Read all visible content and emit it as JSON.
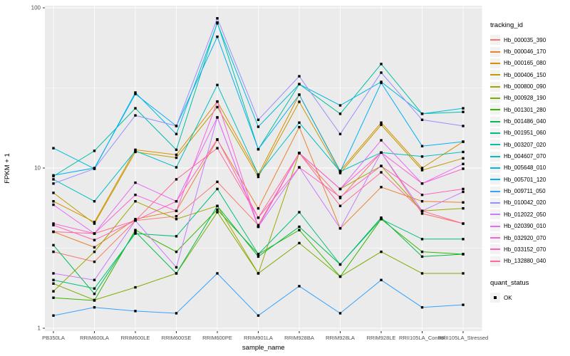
{
  "window": {
    "background": "#FFFFFF"
  },
  "chart_data": {
    "type": "line",
    "title": "",
    "xlabel": "sample_name",
    "ylabel": "FPKM + 1",
    "x_categories": [
      "PB350LA",
      "RRIM600LA",
      "RRIM600LE",
      "RRIM600SE",
      "RRIM600PE",
      "RRIM901LA",
      "RRIM928BA",
      "RRIM928LA",
      "RRIM928LE",
      "RRII105LA_Control",
      "RRII105LA_Stressed"
    ],
    "y_scale": "log10",
    "ylim": [
      1,
      100
    ],
    "y_ticks": [
      "1",
      "10",
      "100"
    ],
    "grid": "on",
    "panel_bg": "#EBEBEB",
    "grid_color": "#FFFFFF",
    "tick_label_color": "#4D4D4D",
    "axis_title_color": "#000000",
    "point_marker": {
      "shape": "square",
      "color": "#000000"
    },
    "legend": {
      "title": "tracking_id",
      "position": "right"
    },
    "legend2": {
      "title": "quant_status",
      "items": [
        {
          "label": "OK",
          "marker": "black-square"
        }
      ]
    },
    "series": [
      {
        "name": "Hb_000035_390",
        "color": "#F8766D",
        "values": [
          3.0,
          2.6,
          4.7,
          5.0,
          8.2,
          4.4,
          12.4,
          6.5,
          12.5,
          5.2,
          4.5
        ]
      },
      {
        "name": "Hb_000046_170",
        "color": "#EA8331",
        "values": [
          4.0,
          3.2,
          4.8,
          5.4,
          15.0,
          5.6,
          18.0,
          4.2,
          7.6,
          6.2,
          6.1
        ]
      },
      {
        "name": "Hb_000165_080",
        "color": "#D89000",
        "values": [
          6.2,
          4.6,
          13.0,
          12.1,
          26.0,
          9.1,
          28.7,
          9.6,
          19.2,
          10.0,
          14.6
        ]
      },
      {
        "name": "Hb_000406_150",
        "color": "#C09B00",
        "values": [
          7.0,
          4.5,
          12.6,
          11.6,
          24.0,
          8.8,
          25.9,
          9.3,
          18.6,
          9.7,
          11.5
        ]
      },
      {
        "name": "Hb_000800_090",
        "color": "#A3A500",
        "values": [
          1.7,
          3.0,
          6.2,
          4.8,
          5.8,
          2.2,
          12.4,
          7.4,
          10.3,
          5.4,
          5.6
        ]
      },
      {
        "name": "Hb_000928_190",
        "color": "#7CAE00",
        "values": [
          1.9,
          1.5,
          1.8,
          2.2,
          5.3,
          2.2,
          3.4,
          2.1,
          3.0,
          2.2,
          2.2
        ]
      },
      {
        "name": "Hb_001301_280",
        "color": "#39B600",
        "values": [
          1.55,
          1.49,
          4.1,
          3.0,
          5.5,
          2.9,
          4.1,
          2.1,
          4.8,
          3.0,
          2.9
        ]
      },
      {
        "name": "Hb_001486_040",
        "color": "#00BB4E",
        "values": [
          3.3,
          1.64,
          4.0,
          2.2,
          5.8,
          2.8,
          4.3,
          2.5,
          4.9,
          2.8,
          2.9
        ]
      },
      {
        "name": "Hb_001951_060",
        "color": "#00BF7D",
        "values": [
          2.0,
          1.77,
          3.9,
          3.75,
          7.4,
          2.9,
          5.3,
          2.5,
          4.8,
          3.6,
          3.6
        ]
      },
      {
        "name": "Hb_003207_020",
        "color": "#00C1A3",
        "values": [
          8.9,
          12.8,
          23.6,
          13.0,
          81.0,
          13.1,
          33.4,
          21.8,
          44.6,
          21.8,
          22.4
        ]
      },
      {
        "name": "Hb_004607_070",
        "color": "#00BFC4",
        "values": [
          8.5,
          6.2,
          12.8,
          10.1,
          33.0,
          9.1,
          19.2,
          9.5,
          12.5,
          11.8,
          12.6
        ]
      },
      {
        "name": "Hb_005648_010",
        "color": "#00BAE0",
        "values": [
          13.3,
          9.9,
          29.6,
          16.3,
          80.0,
          18.1,
          33.4,
          24.6,
          34.5,
          21.8,
          23.6
        ]
      },
      {
        "name": "Hb_005701_120",
        "color": "#00B0F6",
        "values": [
          9.0,
          10.0,
          29.0,
          18.3,
          66.0,
          13.1,
          28.7,
          9.5,
          34.0,
          13.7,
          14.6
        ]
      },
      {
        "name": "Hb_009711_050",
        "color": "#35A2FF",
        "values": [
          1.2,
          1.35,
          1.28,
          1.24,
          2.2,
          1.2,
          1.83,
          1.24,
          2.0,
          1.35,
          1.4
        ]
      },
      {
        "name": "Hb_010042_020",
        "color": "#9590FF",
        "values": [
          8.0,
          9.9,
          21.3,
          18.3,
          86.0,
          20.0,
          37.4,
          16.3,
          39.4,
          20.0,
          18.3
        ]
      },
      {
        "name": "Hb_012022_050",
        "color": "#C77CFF",
        "values": [
          2.2,
          2.0,
          4.7,
          2.4,
          20.7,
          4.3,
          10.1,
          4.2,
          12.5,
          5.4,
          7.1
        ]
      },
      {
        "name": "Hb_020390_010",
        "color": "#E76BF3",
        "values": [
          5.9,
          3.9,
          8.1,
          6.2,
          20.7,
          4.3,
          12.4,
          7.4,
          14.9,
          8.0,
          10.6
        ]
      },
      {
        "name": "Hb_032920_070",
        "color": "#FA62DB",
        "values": [
          4.5,
          3.9,
          6.8,
          5.4,
          26.0,
          4.3,
          12.4,
          7.4,
          12.5,
          8.0,
          9.9
        ]
      },
      {
        "name": "Hb_033152_070",
        "color": "#FF62BC",
        "values": [
          4.4,
          3.55,
          4.7,
          6.2,
          15.1,
          4.9,
          10.1,
          6.6,
          10.3,
          6.8,
          7.4
        ]
      },
      {
        "name": "Hb_132880_040",
        "color": "#FF6A98",
        "values": [
          4.0,
          3.9,
          4.7,
          8.5,
          13.3,
          4.9,
          12.4,
          5.8,
          9.4,
          5.4,
          4.5
        ]
      }
    ]
  }
}
